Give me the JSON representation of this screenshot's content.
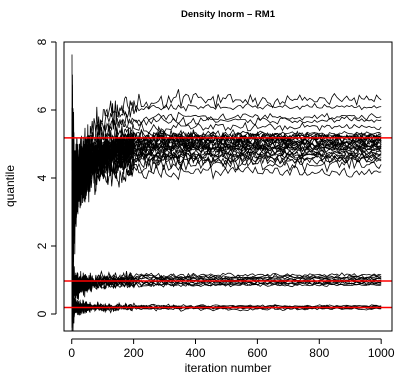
{
  "chart_data": {
    "type": "line",
    "title": "Density lnorm – RM1",
    "xlabel": "iteration number",
    "ylabel": "quantile",
    "xlim": [
      -25,
      1035
    ],
    "ylim": [
      -0.5,
      8
    ],
    "xticks": [
      0,
      200,
      400,
      600,
      800,
      1000
    ],
    "xtick_labels": [
      "0",
      "200",
      "400",
      "600",
      "800",
      "1000"
    ],
    "yticks": [
      0,
      2,
      4,
      6,
      8
    ],
    "ytick_labels": [
      "0",
      "2",
      "4",
      "6",
      "8"
    ],
    "grid": false,
    "legend": "none",
    "reference_lines": [
      {
        "y": 5.18,
        "color": "#ff0000"
      },
      {
        "y": 0.97,
        "color": "#ff0000"
      },
      {
        "y": 0.19,
        "color": "#ff0000"
      }
    ],
    "trajectory_groups": [
      {
        "start": 3.5,
        "final_values": [
          4.18,
          4.4,
          4.5,
          4.55,
          4.6,
          4.65,
          4.7,
          4.72,
          4.75,
          4.8,
          4.85,
          4.88,
          4.9,
          4.92,
          4.95,
          4.98,
          5.0,
          5.02,
          5.05,
          5.08,
          5.1,
          5.12,
          5.15,
          5.18,
          5.2,
          5.22,
          5.25,
          5.3,
          5.5,
          5.7,
          5.8,
          6.1,
          6.3
        ],
        "spread": 1.3
      },
      {
        "start": 0.8,
        "final_values": [
          0.85,
          0.88,
          0.9,
          0.92,
          0.95,
          0.97,
          1.0,
          1.02,
          1.05,
          1.08,
          1.1,
          1.15
        ],
        "spread": 0.5
      },
      {
        "start": 0.2,
        "final_values": [
          0.15,
          0.17,
          0.18,
          0.19,
          0.2,
          0.21,
          0.22,
          0.24
        ],
        "spread": 0.35
      }
    ],
    "series_color": "#000000",
    "iterations": 1000
  }
}
